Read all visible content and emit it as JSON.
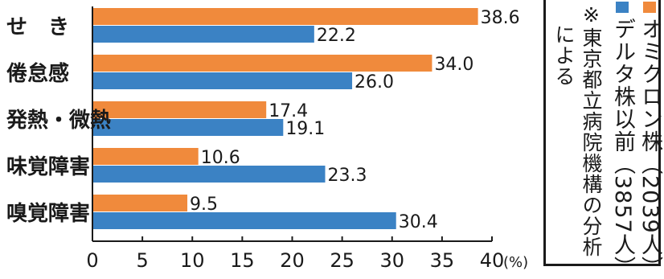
{
  "chart_data": {
    "type": "bar",
    "orientation": "horizontal",
    "categories": [
      "せ　き",
      "倦怠感",
      "発熱・微熱",
      "味覚障害",
      "嗅覚障害"
    ],
    "series": [
      {
        "name": "オミクロン株（2039人）",
        "color": "#f08a3c",
        "values": [
          38.6,
          34.0,
          17.4,
          10.6,
          9.5
        ]
      },
      {
        "name": "デルタ株以前（3857人）",
        "color": "#3b82c4",
        "values": [
          22.2,
          26.0,
          19.1,
          23.3,
          30.4
        ]
      }
    ],
    "value_labels": [
      [
        "38.6",
        "34.0",
        "17.4",
        "10.6",
        "9.5"
      ],
      [
        "22.2",
        "26.0",
        "19.1",
        "23.3",
        "30.4"
      ]
    ],
    "xlim": [
      0,
      40
    ],
    "xticks": [
      "0",
      "5",
      "10",
      "15",
      "20",
      "25",
      "30",
      "35",
      "40"
    ],
    "xunit": "(%)",
    "grid": false,
    "legend_position": "right"
  },
  "legend": {
    "omicron_label": "オミクロン株（2039人）",
    "delta_label": "デルタ株以前（3857人）",
    "note": "※東京都立病院機構の分析",
    "note2": "による"
  }
}
